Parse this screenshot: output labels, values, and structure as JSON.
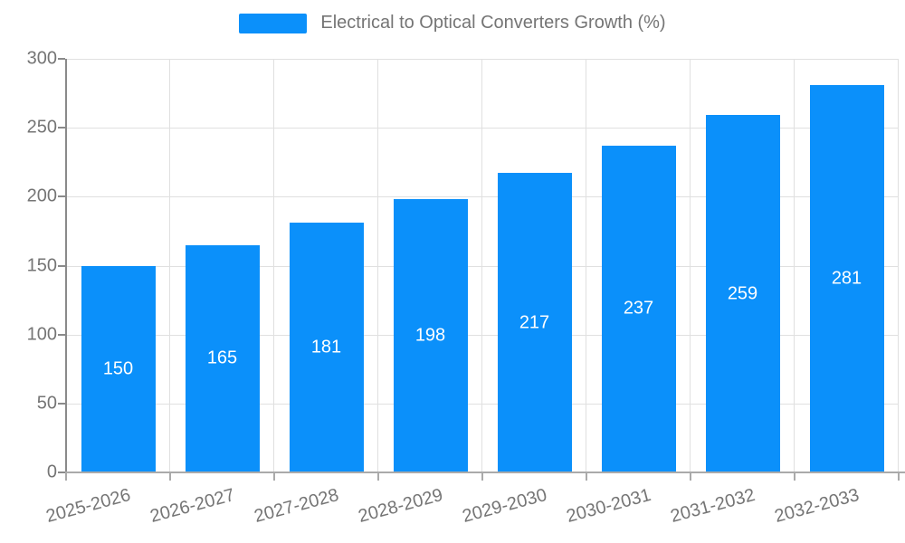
{
  "legend": {
    "label": "Electrical to Optical Converters Growth (%)"
  },
  "colors": {
    "bar": "#0b90fa",
    "bar_label": "#ffffff",
    "axis_text": "#757575",
    "grid": "#e0e0e0",
    "y_axis_line": "#8a8a8a",
    "x_axis_line": "#aaaaaa"
  },
  "chart_data": {
    "type": "bar",
    "title": "Electrical to Optical Converters Growth (%)",
    "categories": [
      "2025-2026",
      "2026-2027",
      "2027-2028",
      "2028-2029",
      "2029-2030",
      "2030-2031",
      "2031-2032",
      "2032-2033"
    ],
    "values": [
      150,
      165,
      181,
      198,
      217,
      237,
      259,
      281
    ],
    "xlabel": "",
    "ylabel": "",
    "ylim": [
      0,
      300
    ],
    "yticks": [
      0,
      50,
      100,
      150,
      200,
      250,
      300
    ],
    "grid": true,
    "legend_position": "top",
    "value_labels": "inside-center",
    "x_label_rotation_deg": -15
  }
}
